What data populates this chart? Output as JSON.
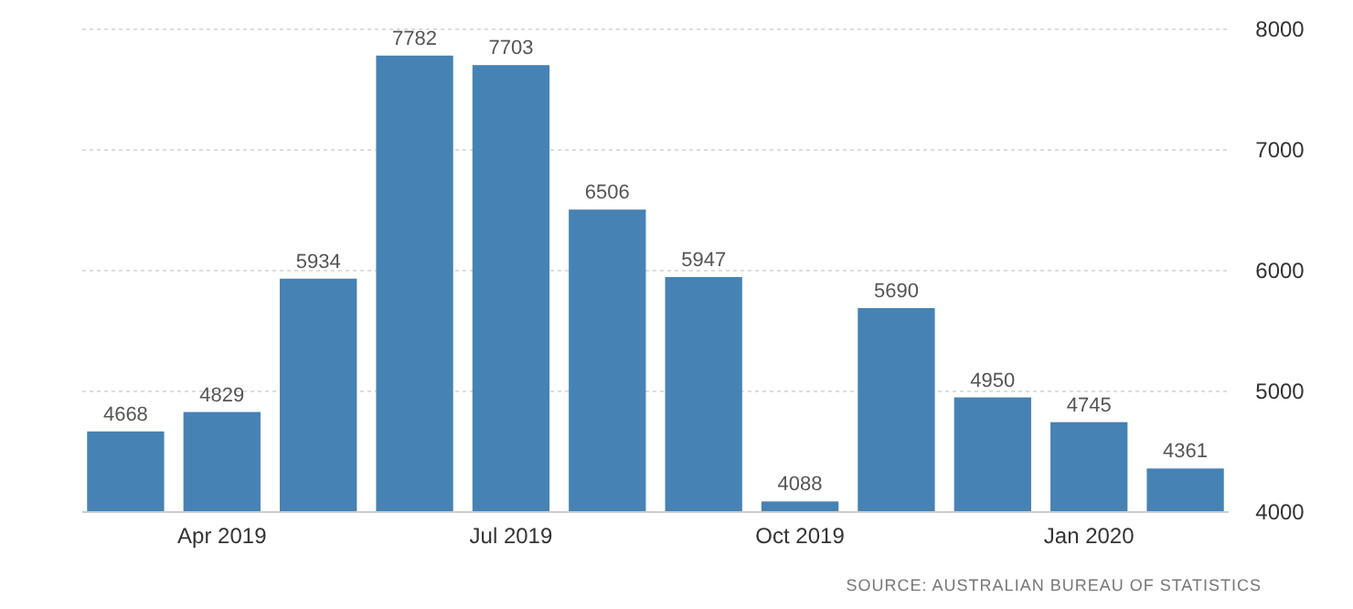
{
  "chart_data": {
    "type": "bar",
    "categories": [
      null,
      "Apr 2019",
      null,
      null,
      "Jul 2019",
      null,
      null,
      "Oct 2019",
      null,
      null,
      "Jan 2020",
      null
    ],
    "values": [
      4668,
      4829,
      5934,
      7782,
      7703,
      6506,
      5947,
      4088,
      5690,
      4950,
      4745,
      4361
    ],
    "color": "#4682b4",
    "ylim": [
      4000,
      8000
    ],
    "yticks": [
      4000,
      5000,
      6000,
      7000,
      8000
    ],
    "grid": "y",
    "data_labels": true,
    "annotations": [
      "SOURCE: AUSTRALIAN BUREAU OF STATISTICS"
    ]
  }
}
